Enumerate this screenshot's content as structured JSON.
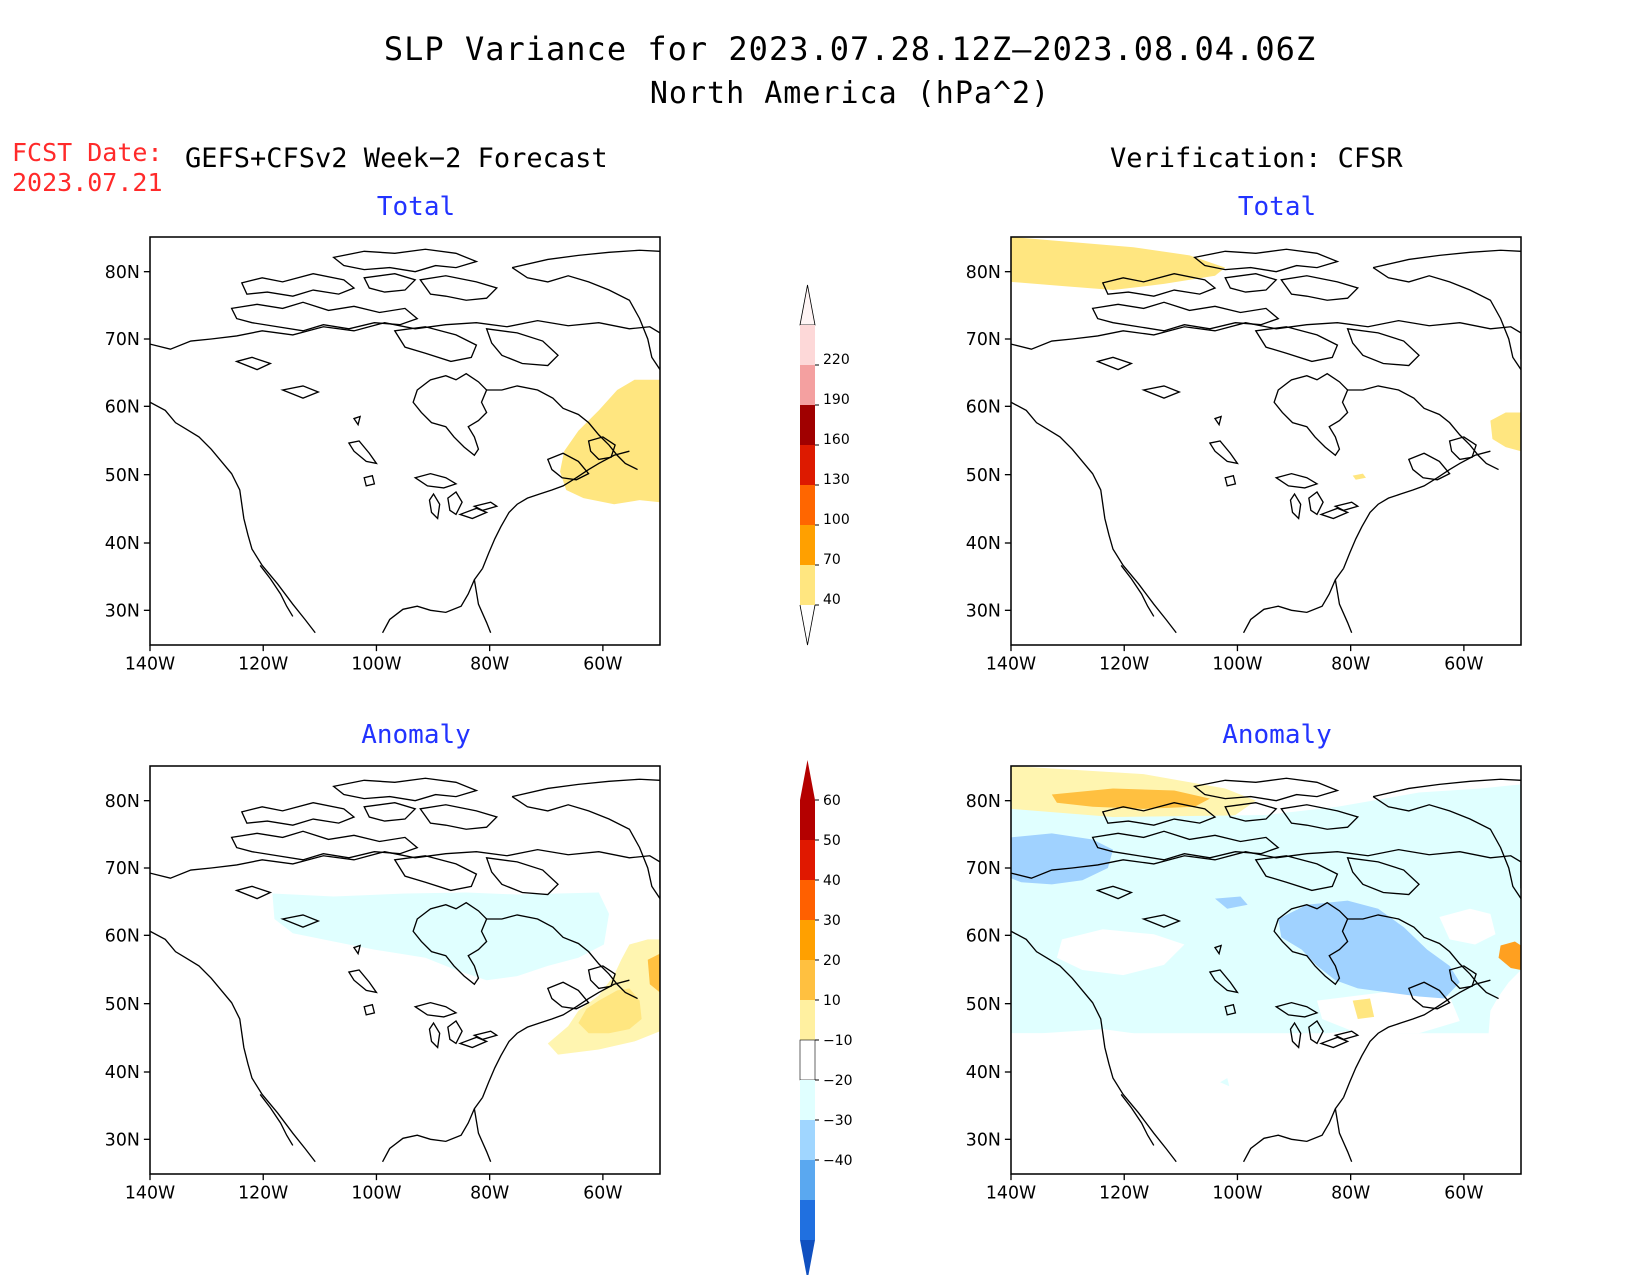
{
  "title": "SLP Variance for 2023.07.28.12Z—2023.08.04.06Z",
  "subtitle": "North America (hPa^2)",
  "fcst_date_label": "FCST Date:",
  "fcst_date_value": "2023.07.21",
  "left_header": "GEFS+CFSv2 Week−2 Forecast",
  "right_header": "Verification: CFSR",
  "panel_titles": {
    "top_left": "Total",
    "top_right": "Total",
    "bottom_left": "Anomaly",
    "bottom_right": "Anomaly"
  },
  "lat_ticks": [
    "80N",
    "70N",
    "60N",
    "50N",
    "40N",
    "30N"
  ],
  "lon_ticks": [
    "140W",
    "120W",
    "100W",
    "80W",
    "60W"
  ],
  "total_colorbar": {
    "levels": [
      "220",
      "190",
      "160",
      "130",
      "100",
      "70",
      "40"
    ],
    "colors": [
      "#fdd8d8",
      "#f4a0a0",
      "#a00000",
      "#dd1a00",
      "#ff6600",
      "#ffa000",
      "#ffe680"
    ]
  },
  "anomaly_colorbar": {
    "levels": [
      "60",
      "50",
      "40",
      "30",
      "20",
      "10",
      "−10",
      "−20",
      "−30",
      "−40"
    ],
    "colors_top": [
      "#b40000",
      "#e01800",
      "#ff6000",
      "#ffa000",
      "#ffc040",
      "#fff0a0"
    ],
    "colors_bottom": [
      "#e0ffff",
      "#a0d6ff",
      "#5aa8f0",
      "#2070e0",
      "#1050c0"
    ]
  },
  "shading": {
    "yellow": "#ffe680",
    "light_yellow": "#fff5b0",
    "orange": "#ffc040",
    "dark_orange": "#ffa020",
    "light_cyan": "#e0ffff",
    "light_blue": "#a0d2ff"
  }
}
